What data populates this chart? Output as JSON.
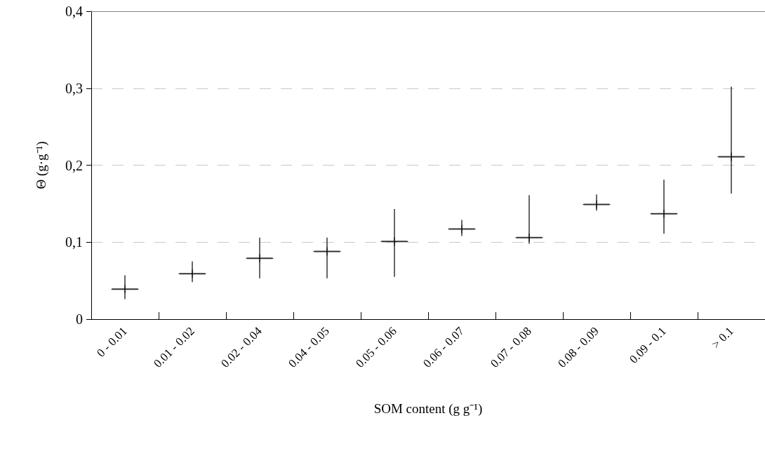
{
  "chart_data": {
    "type": "scatter",
    "xlabel": "SOM content (g g⁻¹)",
    "ylabel": "Θ (g·g⁻¹)",
    "categories": [
      "0 - 0.01",
      "0.01 - 0.02",
      "0.02 - 0.04",
      "0.04 - 0.05",
      "0.05 - 0.06",
      "0.06 - 0.07",
      "0.07 - 0.08",
      "0.08 - 0.09",
      "0.09 - 0.1",
      "> 0.1"
    ],
    "values": [
      0.039,
      0.059,
      0.079,
      0.088,
      0.101,
      0.117,
      0.106,
      0.149,
      0.137,
      0.211
    ],
    "errors": [
      [
        0.026,
        0.057
      ],
      [
        0.048,
        0.075
      ],
      [
        0.053,
        0.106
      ],
      [
        0.053,
        0.106
      ],
      [
        0.055,
        0.143
      ],
      [
        0.108,
        0.129
      ],
      [
        0.098,
        0.161
      ],
      [
        0.141,
        0.162
      ],
      [
        0.111,
        0.181
      ],
      [
        0.163,
        0.302
      ]
    ],
    "color": "#000000",
    "ylim": [
      0,
      0.4
    ],
    "yticks": [
      0,
      {
        "value": 0.1,
        "label": "0,1"
      },
      {
        "value": 0.2,
        "label": "0,2"
      },
      {
        "value": 0.3,
        "label": "0,3"
      },
      {
        "value": 0.4,
        "label": "0,4"
      }
    ],
    "grid": "y"
  }
}
